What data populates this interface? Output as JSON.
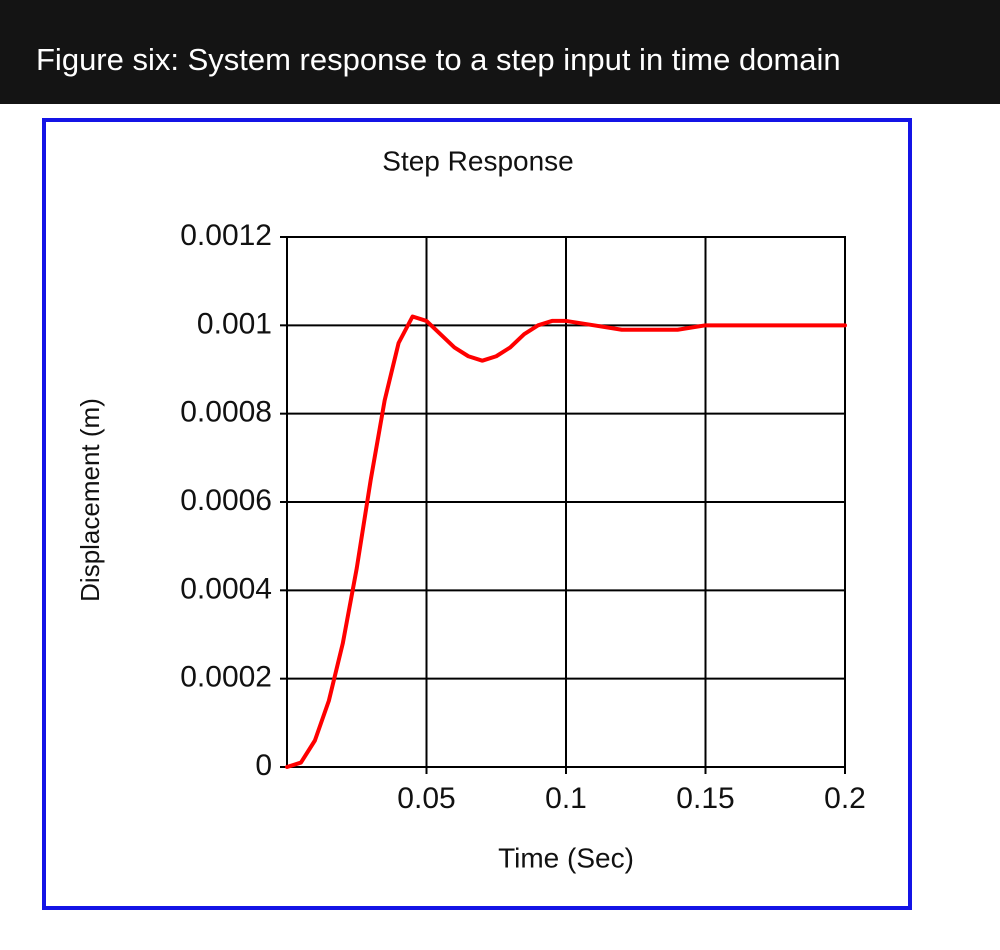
{
  "header": {
    "title": "Figure six: System response to a step input in time domain"
  },
  "chart_data": {
    "type": "line",
    "title": "Step Response",
    "x_label": "Time (Sec)",
    "y_label": "Displacement (m)",
    "x": [
      0,
      0.005,
      0.01,
      0.015,
      0.02,
      0.025,
      0.03,
      0.035,
      0.04,
      0.045,
      0.05,
      0.055,
      0.06,
      0.065,
      0.07,
      0.075,
      0.08,
      0.085,
      0.09,
      0.095,
      0.1,
      0.11,
      0.12,
      0.13,
      0.14,
      0.15,
      0.16,
      0.17,
      0.18,
      0.19,
      0.2
    ],
    "values": [
      0,
      1e-05,
      6e-05,
      0.00015,
      0.00028,
      0.00045,
      0.00065,
      0.00083,
      0.00096,
      0.00102,
      0.00101,
      0.00098,
      0.00095,
      0.00093,
      0.00092,
      0.00093,
      0.00095,
      0.00098,
      0.001,
      0.00101,
      0.00101,
      0.001,
      0.00099,
      0.00099,
      0.00099,
      0.001,
      0.001,
      0.001,
      0.001,
      0.001,
      0.001
    ],
    "color": "#ff0000",
    "xlim": [
      0,
      0.2
    ],
    "xticks": [
      0.05,
      0.1,
      0.15,
      0.2
    ],
    "ylim": [
      0,
      0.0012
    ],
    "yticks": [
      0,
      0.0002,
      0.0004,
      0.0006,
      0.0008,
      0.001,
      0.0012
    ],
    "grid": true
  }
}
